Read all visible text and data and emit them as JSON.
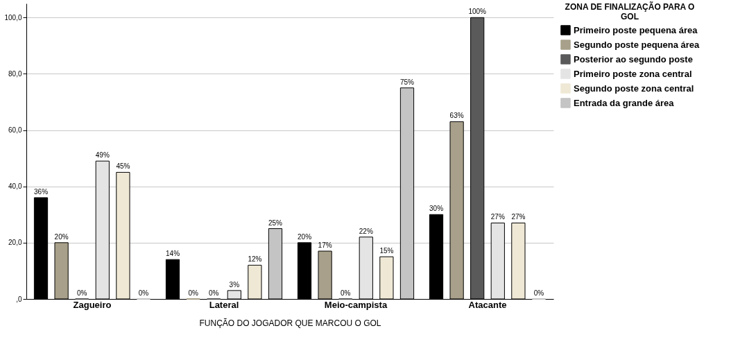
{
  "chart_data": {
    "type": "bar",
    "xlabel": "FUNÇÃO DO JOGADOR QUE MARCOU O GOL",
    "legend_title": "ZONA DE FINALIZAÇÃO PARA O GOL",
    "categories": [
      "Zagueiro",
      "Lateral",
      "Meio-campista",
      "Atacante"
    ],
    "ylim": [
      0,
      105
    ],
    "yticks": [
      {
        "value": 0,
        "label": ",0"
      },
      {
        "value": 20,
        "label": "20,0"
      },
      {
        "value": 40,
        "label": "40,0"
      },
      {
        "value": 60,
        "label": "60,0"
      },
      {
        "value": 80,
        "label": "80,0"
      },
      {
        "value": 100,
        "label": "100,0"
      }
    ],
    "grid": "y",
    "legend": "top right",
    "series": [
      {
        "name": "Primeiro poste pequena área",
        "color": "#000000",
        "values": [
          36,
          14,
          20,
          30
        ],
        "value_labels": [
          "36%",
          "14%",
          "20%",
          "30%"
        ]
      },
      {
        "name": "Segundo poste pequena área",
        "color": "#a8a08a",
        "values": [
          20,
          0,
          17,
          63
        ],
        "value_labels": [
          "20%",
          "0%",
          "17%",
          "63%"
        ]
      },
      {
        "name": "Posterior ao segundo poste",
        "color": "#5a5a5a",
        "values": [
          0,
          0,
          0,
          100
        ],
        "value_labels": [
          "0%",
          "0%",
          "0%",
          "100%"
        ]
      },
      {
        "name": "Primeiro poste zona central",
        "color": "#e4e4e4",
        "values": [
          49,
          3,
          22,
          27
        ],
        "value_labels": [
          "49%",
          "3%",
          "22%",
          "27%"
        ]
      },
      {
        "name": "Segundo poste zona central",
        "color": "#efe8d5",
        "values": [
          45,
          12,
          15,
          27
        ],
        "value_labels": [
          "45%",
          "12%",
          "15%",
          "27%"
        ]
      },
      {
        "name": "Entrada da grande área",
        "color": "#c4c4c4",
        "values": [
          0,
          25,
          75,
          0
        ],
        "value_labels": [
          "0%",
          "25%",
          "75%",
          "0%"
        ]
      }
    ]
  }
}
